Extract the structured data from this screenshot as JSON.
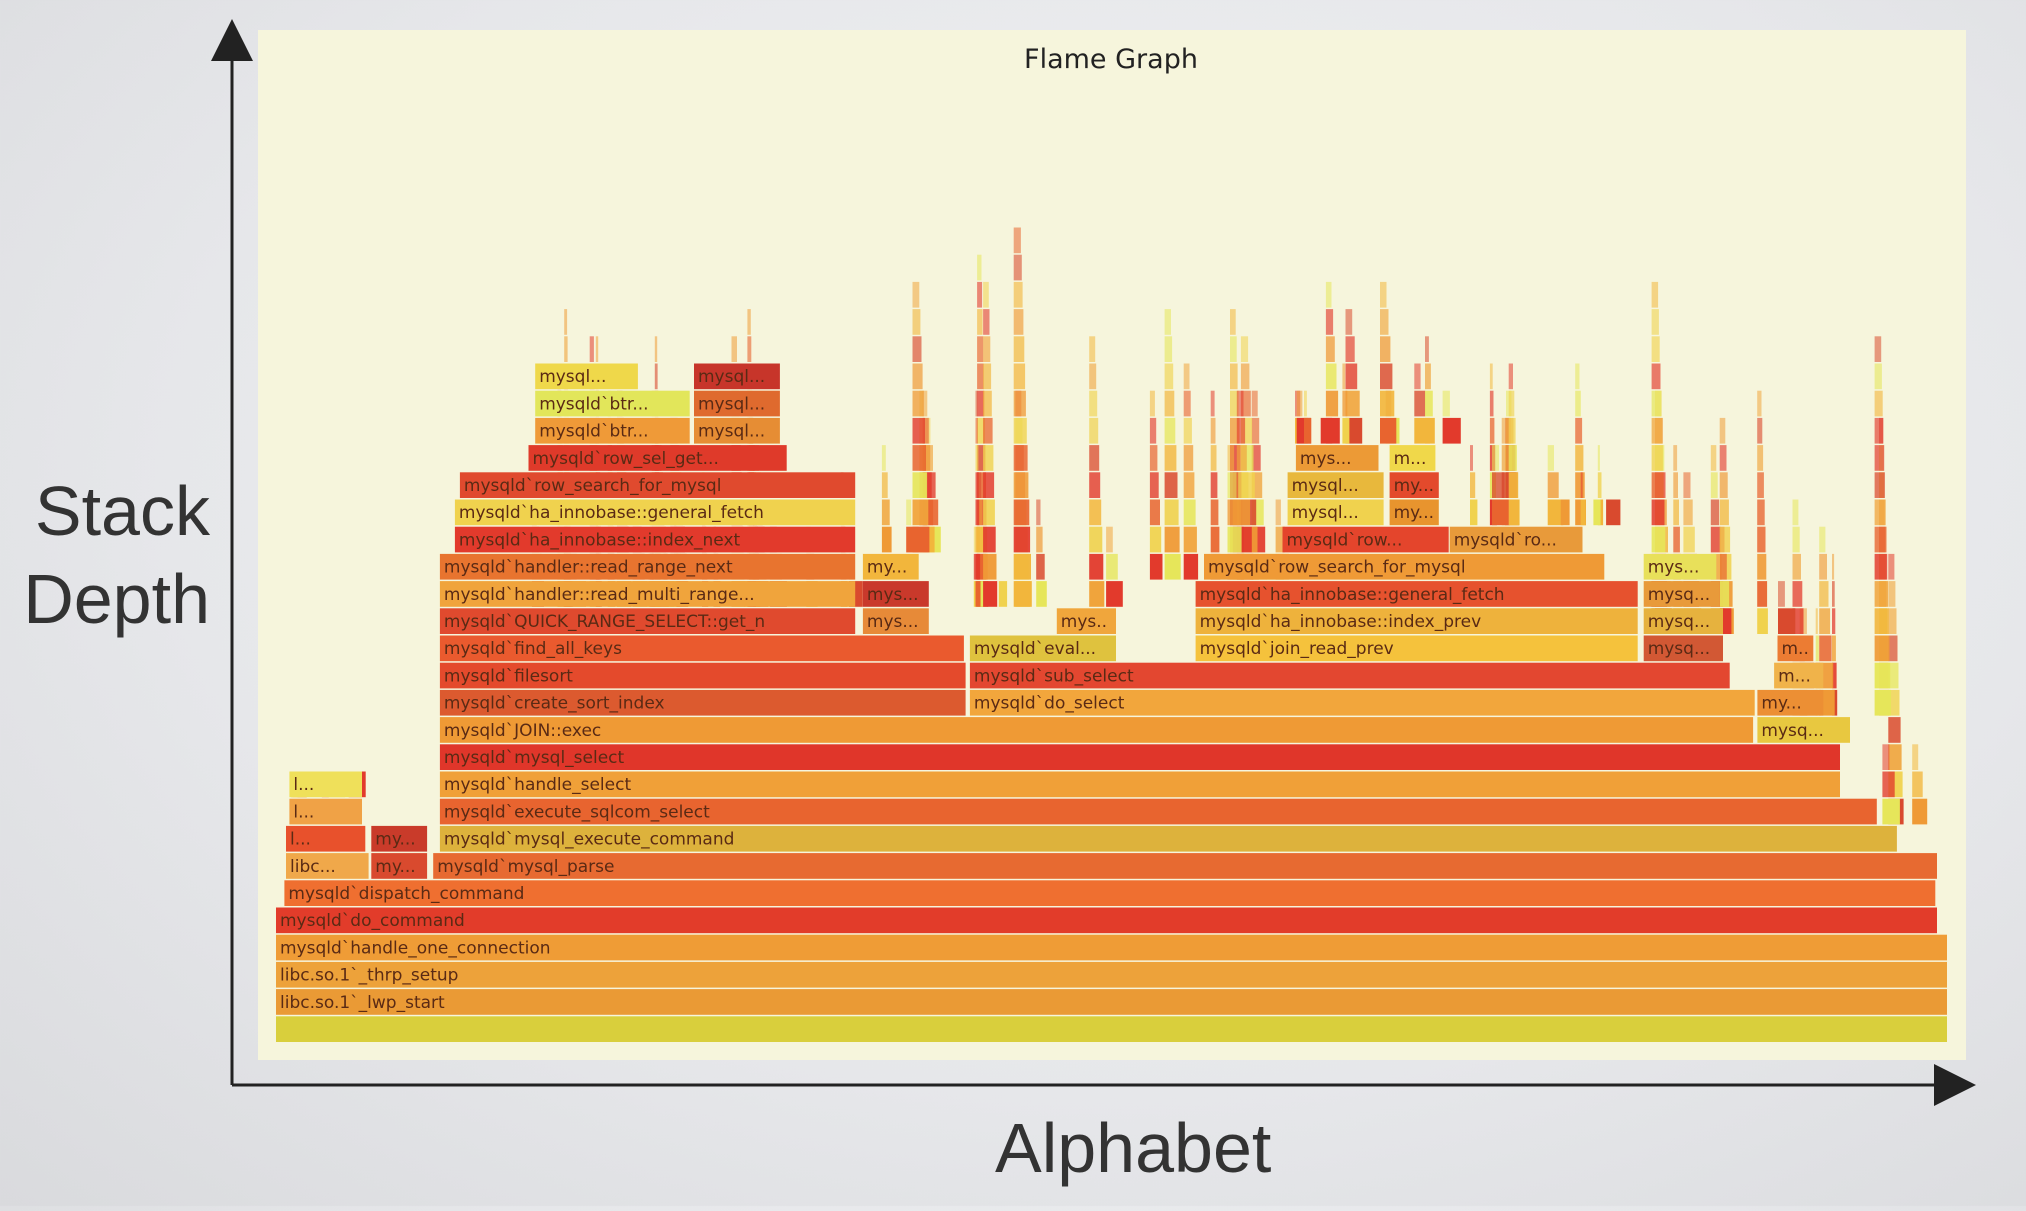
{
  "chart_data": {
    "type": "flame",
    "title": "Flame Graph",
    "xlabel": "Alphabet",
    "ylabel": "Stack Depth",
    "frames": [
      {
        "label": "",
        "x": 0.0,
        "w": 1.0,
        "d": 0,
        "c": "#d9cf3c"
      },
      {
        "label": "libc.so.1`_lwp_start",
        "x": 0.0,
        "w": 1.0,
        "d": 1,
        "c": "#ea9a35"
      },
      {
        "label": "libc.so.1`_thrp_setup",
        "x": 0.0,
        "w": 1.0,
        "d": 2,
        "c": "#eda23a"
      },
      {
        "label": "mysqld`handle_one_connection",
        "x": 0.0,
        "w": 1.0,
        "d": 3,
        "c": "#ef9c36"
      },
      {
        "label": "mysqld`do_command",
        "x": 0.0,
        "w": 0.994,
        "d": 4,
        "c": "#e23c2a"
      },
      {
        "label": "mysqld`dispatch_command",
        "x": 0.005,
        "w": 0.988,
        "d": 5,
        "c": "#ef6f30"
      },
      {
        "label": "libc...",
        "x": 0.006,
        "w": 0.05,
        "d": 6,
        "c": "#f0a84a"
      },
      {
        "label": "my...",
        "x": 0.057,
        "w": 0.034,
        "d": 6,
        "c": "#d94a2e"
      },
      {
        "label": "mysqld`mysql_parse",
        "x": 0.094,
        "w": 0.9,
        "d": 6,
        "c": "#e76a31"
      },
      {
        "label": "l...",
        "x": 0.006,
        "w": 0.048,
        "d": 7,
        "c": "#e8512c"
      },
      {
        "label": "my...",
        "x": 0.057,
        "w": 0.034,
        "d": 7,
        "c": "#c93b2a"
      },
      {
        "label": "mysqld`mysql_execute_command",
        "x": 0.098,
        "w": 0.872,
        "d": 7,
        "c": "#ddb23c"
      },
      {
        "label": "l...",
        "x": 0.008,
        "w": 0.044,
        "d": 8,
        "c": "#f0a246"
      },
      {
        "label": "mysqld`execute_sqlcom_select",
        "x": 0.098,
        "w": 0.86,
        "d": 8,
        "c": "#e8642f"
      },
      {
        "label": "l...",
        "x": 0.008,
        "w": 0.044,
        "d": 9,
        "c": "#efe05a"
      },
      {
        "label": "mysqld`handle_select",
        "x": 0.098,
        "w": 0.838,
        "d": 9,
        "c": "#f0a038"
      },
      {
        "label": "mysqld`mysql_select",
        "x": 0.098,
        "w": 0.838,
        "d": 10,
        "c": "#e0362a"
      },
      {
        "label": "mysqld`JOIN::exec",
        "x": 0.098,
        "w": 0.786,
        "d": 11,
        "c": "#ef9a35"
      },
      {
        "label": "mysq...",
        "x": 0.886,
        "w": 0.056,
        "d": 11,
        "c": "#e8c840"
      },
      {
        "label": "mysqld`create_sort_index",
        "x": 0.098,
        "w": 0.315,
        "d": 12,
        "c": "#dc5a2f"
      },
      {
        "label": "mysqld`do_select",
        "x": 0.415,
        "w": 0.47,
        "d": 12,
        "c": "#f2a63c"
      },
      {
        "label": "my...",
        "x": 0.886,
        "w": 0.04,
        "d": 12,
        "c": "#ec8f34"
      },
      {
        "label": "mysqld`filesort",
        "x": 0.098,
        "w": 0.315,
        "d": 13,
        "c": "#e44a2c"
      },
      {
        "label": "mysqld`sub_select",
        "x": 0.415,
        "w": 0.455,
        "d": 13,
        "c": "#e34730"
      },
      {
        "label": "m...",
        "x": 0.896,
        "w": 0.03,
        "d": 13,
        "c": "#f0b34a"
      },
      {
        "label": "mysqld`find_all_keys",
        "x": 0.098,
        "w": 0.314,
        "d": 14,
        "c": "#ea5a2e"
      },
      {
        "label": "mysqld`eval...",
        "x": 0.415,
        "w": 0.088,
        "d": 14,
        "c": "#dfc23e"
      },
      {
        "label": "mysqld`join_read_prev",
        "x": 0.55,
        "w": 0.265,
        "d": 14,
        "c": "#f5c23c"
      },
      {
        "label": "mysq...",
        "x": 0.818,
        "w": 0.048,
        "d": 14,
        "c": "#d25834"
      },
      {
        "label": "m...",
        "x": 0.898,
        "w": 0.022,
        "d": 14,
        "c": "#ec7c33"
      },
      {
        "label": "mysqld`QUICK_RANGE_SELECT::get_n",
        "x": 0.098,
        "w": 0.249,
        "d": 15,
        "c": "#e04a2e"
      },
      {
        "label": "mys...",
        "x": 0.351,
        "w": 0.04,
        "d": 15,
        "c": "#e78a38"
      },
      {
        "label": "mysq...",
        "x": 0.467,
        "w": 0.036,
        "d": 15,
        "c": "#f0a63c"
      },
      {
        "label": "mysqld`ha_innobase::index_prev",
        "x": 0.55,
        "w": 0.265,
        "d": 15,
        "c": "#eeb23c"
      },
      {
        "label": "mysq...",
        "x": 0.818,
        "w": 0.048,
        "d": 15,
        "c": "#e6b23e"
      },
      {
        "label": "mysqld`handler::read_multi_range...",
        "x": 0.098,
        "w": 0.249,
        "d": 16,
        "c": "#f0a43c"
      },
      {
        "label": "mys...",
        "x": 0.351,
        "w": 0.04,
        "d": 16,
        "c": "#c9392b"
      },
      {
        "label": "mysqld`ha_innobase::general_fetch",
        "x": 0.55,
        "w": 0.265,
        "d": 16,
        "c": "#e6522e"
      },
      {
        "label": "mysq...",
        "x": 0.818,
        "w": 0.046,
        "d": 16,
        "c": "#e89a3a"
      },
      {
        "label": "mysqld`handler::read_range_next",
        "x": 0.098,
        "w": 0.249,
        "d": 17,
        "c": "#e8742f"
      },
      {
        "label": "my...",
        "x": 0.351,
        "w": 0.034,
        "d": 17,
        "c": "#f2b63c"
      },
      {
        "label": "mysqld`row_search_for_mysql",
        "x": 0.555,
        "w": 0.24,
        "d": 17,
        "c": "#ef9a36"
      },
      {
        "label": "mys...",
        "x": 0.818,
        "w": 0.044,
        "d": 17,
        "c": "#e8e05a"
      },
      {
        "label": "mysqld`ha_innobase::index_next",
        "x": 0.107,
        "w": 0.24,
        "d": 18,
        "c": "#e23a2c"
      },
      {
        "label": "mysqld`row...",
        "x": 0.602,
        "w": 0.1,
        "d": 18,
        "c": "#e4452c"
      },
      {
        "label": "mysqld`ro...",
        "x": 0.702,
        "w": 0.08,
        "d": 18,
        "c": "#e89a3a"
      },
      {
        "label": "mysqld`ha_innobase::general_fetch",
        "x": 0.107,
        "w": 0.24,
        "d": 19,
        "c": "#f0d24e"
      },
      {
        "label": "mysql...",
        "x": 0.605,
        "w": 0.058,
        "d": 19,
        "c": "#f0d24e"
      },
      {
        "label": "my...",
        "x": 0.666,
        "w": 0.03,
        "d": 19,
        "c": "#e8942e"
      },
      {
        "label": "mysqld`row_search_for_mysql",
        "x": 0.11,
        "w": 0.237,
        "d": 20,
        "c": "#e04a2e"
      },
      {
        "label": "mysql...",
        "x": 0.605,
        "w": 0.058,
        "d": 20,
        "c": "#e8b83c"
      },
      {
        "label": "my...",
        "x": 0.666,
        "w": 0.03,
        "d": 20,
        "c": "#e34a2c"
      },
      {
        "label": "mysqld`row_sel_get...",
        "x": 0.151,
        "w": 0.155,
        "d": 21,
        "c": "#df3a2a"
      },
      {
        "label": "mys...",
        "x": 0.61,
        "w": 0.05,
        "d": 21,
        "c": "#ec9a36"
      },
      {
        "label": "m...",
        "x": 0.666,
        "w": 0.028,
        "d": 21,
        "c": "#f0d84a"
      },
      {
        "label": "mysqld`btr...",
        "x": 0.155,
        "w": 0.093,
        "d": 22,
        "c": "#ef9a38"
      },
      {
        "label": "mysql...",
        "x": 0.25,
        "w": 0.052,
        "d": 22,
        "c": "#e68d34"
      },
      {
        "label": "mysqld`btr...",
        "x": 0.155,
        "w": 0.093,
        "d": 23,
        "c": "#e2e65a"
      },
      {
        "label": "mysql...",
        "x": 0.25,
        "w": 0.052,
        "d": 23,
        "c": "#df6a2e"
      },
      {
        "label": "mysql...",
        "x": 0.155,
        "w": 0.062,
        "d": 24,
        "c": "#efd84a"
      },
      {
        "label": "mysql...",
        "x": 0.25,
        "w": 0.052,
        "d": 24,
        "c": "#c7352a"
      }
    ]
  }
}
